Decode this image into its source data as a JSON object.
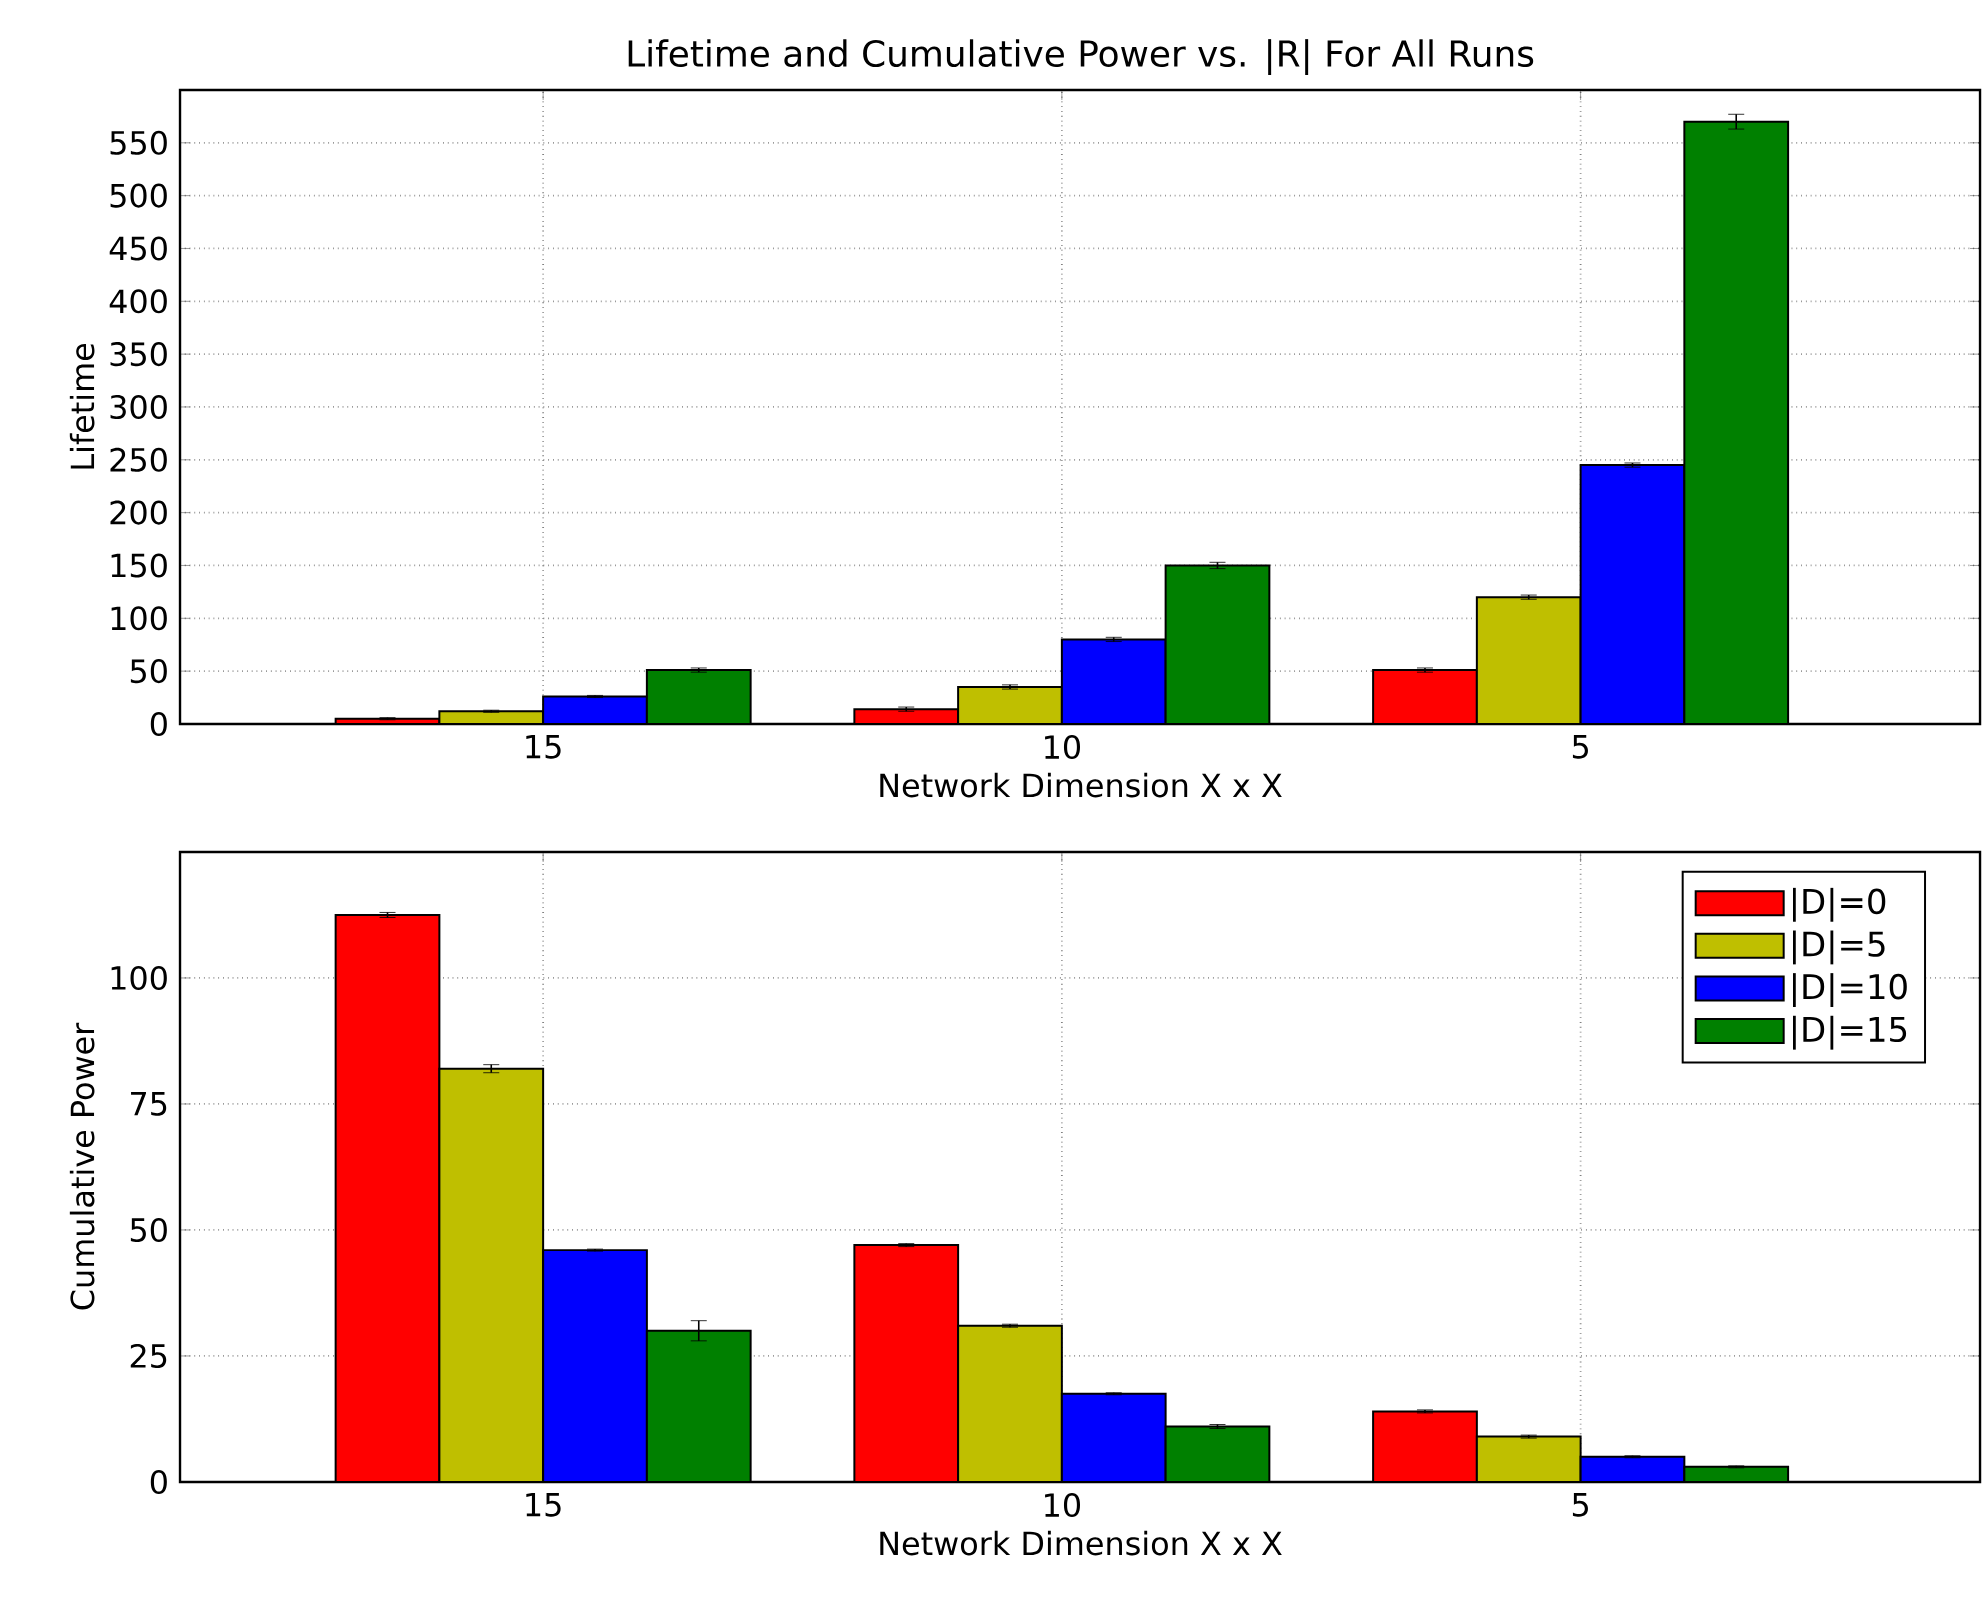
{
  "chart_data": [
    {
      "type": "bar",
      "title": "Lifetime and Cumulative Power vs. |R| For All Runs",
      "xlabel": "Network Dimension X x X",
      "ylabel": "Lifetime",
      "categories": [
        "15",
        "10",
        "5"
      ],
      "series": [
        {
          "color": "#ff0000",
          "values": [
            5,
            14,
            51
          ],
          "errors": [
            1,
            2,
            2
          ]
        },
        {
          "color": "#bfbf00",
          "values": [
            12,
            35,
            120
          ],
          "errors": [
            1,
            2,
            2
          ]
        },
        {
          "color": "#0000ff",
          "values": [
            26,
            80,
            245
          ],
          "errors": [
            1,
            2,
            2
          ]
        },
        {
          "color": "#008000",
          "values": [
            51,
            150,
            570
          ],
          "errors": [
            2,
            3,
            7
          ]
        }
      ],
      "ylim": [
        0,
        600
      ],
      "yticks": [
        0,
        50,
        100,
        150,
        200,
        250,
        300,
        350,
        400,
        450,
        500,
        550
      ],
      "grid": true,
      "legend": false
    },
    {
      "type": "bar",
      "xlabel": "Network Dimension X x X",
      "ylabel": "Cumulative Power",
      "categories": [
        "15",
        "10",
        "5"
      ],
      "series": [
        {
          "name": "|D|=0",
          "color": "#ff0000",
          "values": [
            112.5,
            47,
            14
          ],
          "errors": [
            0.5,
            0.3,
            0.3
          ]
        },
        {
          "name": "|D|=5",
          "color": "#bfbf00",
          "values": [
            82,
            31,
            9
          ],
          "errors": [
            0.8,
            0.3,
            0.3
          ]
        },
        {
          "name": "|D|=10",
          "color": "#0000ff",
          "values": [
            46,
            17.5,
            5
          ],
          "errors": [
            0.2,
            0.2,
            0.2
          ]
        },
        {
          "name": "|D|=15",
          "color": "#008000",
          "values": [
            30,
            11,
            3
          ],
          "errors": [
            2,
            0.4,
            0.2
          ]
        }
      ],
      "ylim": [
        0,
        125
      ],
      "yticks": [
        0,
        25,
        50,
        75,
        100
      ],
      "grid": true,
      "legend": "top right"
    }
  ]
}
